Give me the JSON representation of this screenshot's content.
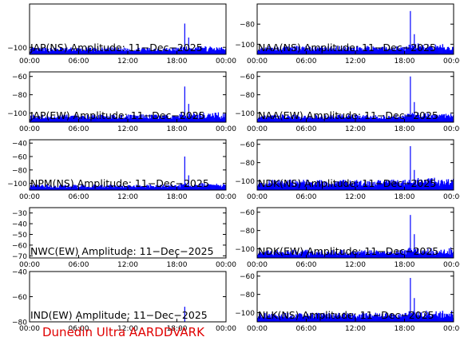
{
  "footer": "Dunedin Ultra AARDDVARK",
  "chart_data": [
    {
      "type": "area",
      "title": "JAP(NS) Amplitude: 11-Dec-2025",
      "xticks": [
        "00:00",
        "06:00",
        "12:00",
        "18:00",
        "00:00"
      ],
      "yticks": [
        -100
      ],
      "ylim": [
        -110,
        -38
      ],
      "series": [
        {
          "name": "",
          "color": "#0000ff",
          "baseline": -103,
          "spread": 3,
          "spikes": [
            [
              0.79,
              -66
            ],
            [
              0.81,
              -86
            ]
          ]
        }
      ]
    },
    {
      "type": "area",
      "title": "NAA(NS) Amplitude: 11-Dec-2025",
      "xticks": [
        "00:00",
        "06:00",
        "12:00",
        "18:00",
        "00:00"
      ],
      "yticks": [
        -100,
        -80
      ],
      "ylim": [
        -110,
        -60
      ],
      "series": [
        {
          "name": "",
          "color": "#0000ff",
          "baseline": -104,
          "spread": 2.5,
          "spikes": [
            [
              0.78,
              -67
            ],
            [
              0.8,
              -90
            ]
          ]
        }
      ]
    },
    {
      "type": "area",
      "title": "JAP(EW) Amplitude: 11-Dec-2025",
      "xticks": [
        "00:00",
        "06:00",
        "12:00",
        "18:00",
        "00:00"
      ],
      "yticks": [
        -100,
        -80,
        -60
      ],
      "ylim": [
        -110,
        -55
      ],
      "series": [
        {
          "name": "",
          "color": "#0000ff",
          "baseline": -104,
          "spread": 2.5,
          "spikes": [
            [
              0.79,
              -71
            ],
            [
              0.81,
              -90
            ]
          ]
        }
      ]
    },
    {
      "type": "area",
      "title": "NAA(EW) Amplitude: 11-Dec-2025",
      "xticks": [
        "00:00",
        "06:00",
        "12:00",
        "18:00",
        "00:00"
      ],
      "yticks": [
        -100,
        -80,
        -60
      ],
      "ylim": [
        -110,
        -55
      ],
      "series": [
        {
          "name": "",
          "color": "#0000ff",
          "baseline": -104,
          "spread": 2.5,
          "spikes": [
            [
              0.78,
              -60
            ],
            [
              0.8,
              -88
            ]
          ]
        }
      ]
    },
    {
      "type": "area",
      "title": "NPM(NS) Amplitude: 11-Dec-2025",
      "xticks": [
        "00:00",
        "06:00",
        "12:00",
        "18:00",
        "00:00"
      ],
      "yticks": [
        -100,
        -80,
        -60,
        -40
      ],
      "ylim": [
        -110,
        -35
      ],
      "series": [
        {
          "name": "",
          "color": "#0000ff",
          "baseline": -104,
          "spread": 2.5,
          "spikes": [
            [
              0.79,
              -60
            ],
            [
              0.81,
              -88
            ]
          ]
        }
      ]
    },
    {
      "type": "area",
      "title": "NDK(NS) Amplitude: 11-Dec-2025",
      "xticks": [
        "00:00",
        "06:00",
        "12:00",
        "18:00",
        "00:00"
      ],
      "yticks": [
        -100,
        -80,
        -60
      ],
      "ylim": [
        -110,
        -55
      ],
      "series": [
        {
          "name": "",
          "color": "#0000ff",
          "baseline": -102,
          "spread": 3.5,
          "spikes": [
            [
              0.78,
              -62
            ],
            [
              0.8,
              -88
            ]
          ]
        }
      ]
    },
    {
      "type": "area",
      "title": "NWC(EW) Amplitude: 11-Dec-2025",
      "xticks": [
        "00:00",
        "06:00",
        "12:00",
        "18:00",
        "00:00"
      ],
      "yticks": [
        -70,
        -60,
        -50,
        -40,
        -30
      ],
      "ylim": [
        -72,
        -25
      ],
      "series": [
        {
          "name": "",
          "color": "#0000ff",
          "baseline": -72,
          "spread": 0,
          "spikes": []
        }
      ]
    },
    {
      "type": "area",
      "title": "NDK(EW) Amplitude: 11-Dec-2025",
      "xticks": [
        "00:00",
        "06:00",
        "12:00",
        "18:00",
        "00:00"
      ],
      "yticks": [
        -100,
        -80,
        -60
      ],
      "ylim": [
        -110,
        -55
      ],
      "series": [
        {
          "name": "",
          "color": "#0000ff",
          "baseline": -104,
          "spread": 3,
          "spikes": [
            [
              0.78,
              -63
            ],
            [
              0.8,
              -84
            ]
          ]
        }
      ]
    },
    {
      "type": "area",
      "title": "IND(EW) Amplitude: 11-Dec-2025",
      "xticks": [
        "00:00",
        "06:00",
        "12:00",
        "18:00",
        "00:00"
      ],
      "yticks": [
        -80,
        -60,
        -40
      ],
      "ylim": [
        -80,
        -40
      ],
      "series": [
        {
          "name": "",
          "color": "#0000ff",
          "baseline": -80,
          "spread": 0,
          "spikes": [
            [
              0.79,
              -68
            ]
          ]
        }
      ]
    },
    {
      "type": "area",
      "title": "NLK(NS) Amplitude: 11-Dec-2025",
      "xticks": [
        "00:00",
        "06:00",
        "12:00",
        "18:00",
        "00:00"
      ],
      "yticks": [
        -100,
        -80,
        -60
      ],
      "ylim": [
        -110,
        -55
      ],
      "series": [
        {
          "name": "",
          "color": "#0000ff",
          "baseline": -103,
          "spread": 3,
          "spikes": [
            [
              0.78,
              -62
            ],
            [
              0.8,
              -84
            ]
          ]
        }
      ]
    }
  ]
}
